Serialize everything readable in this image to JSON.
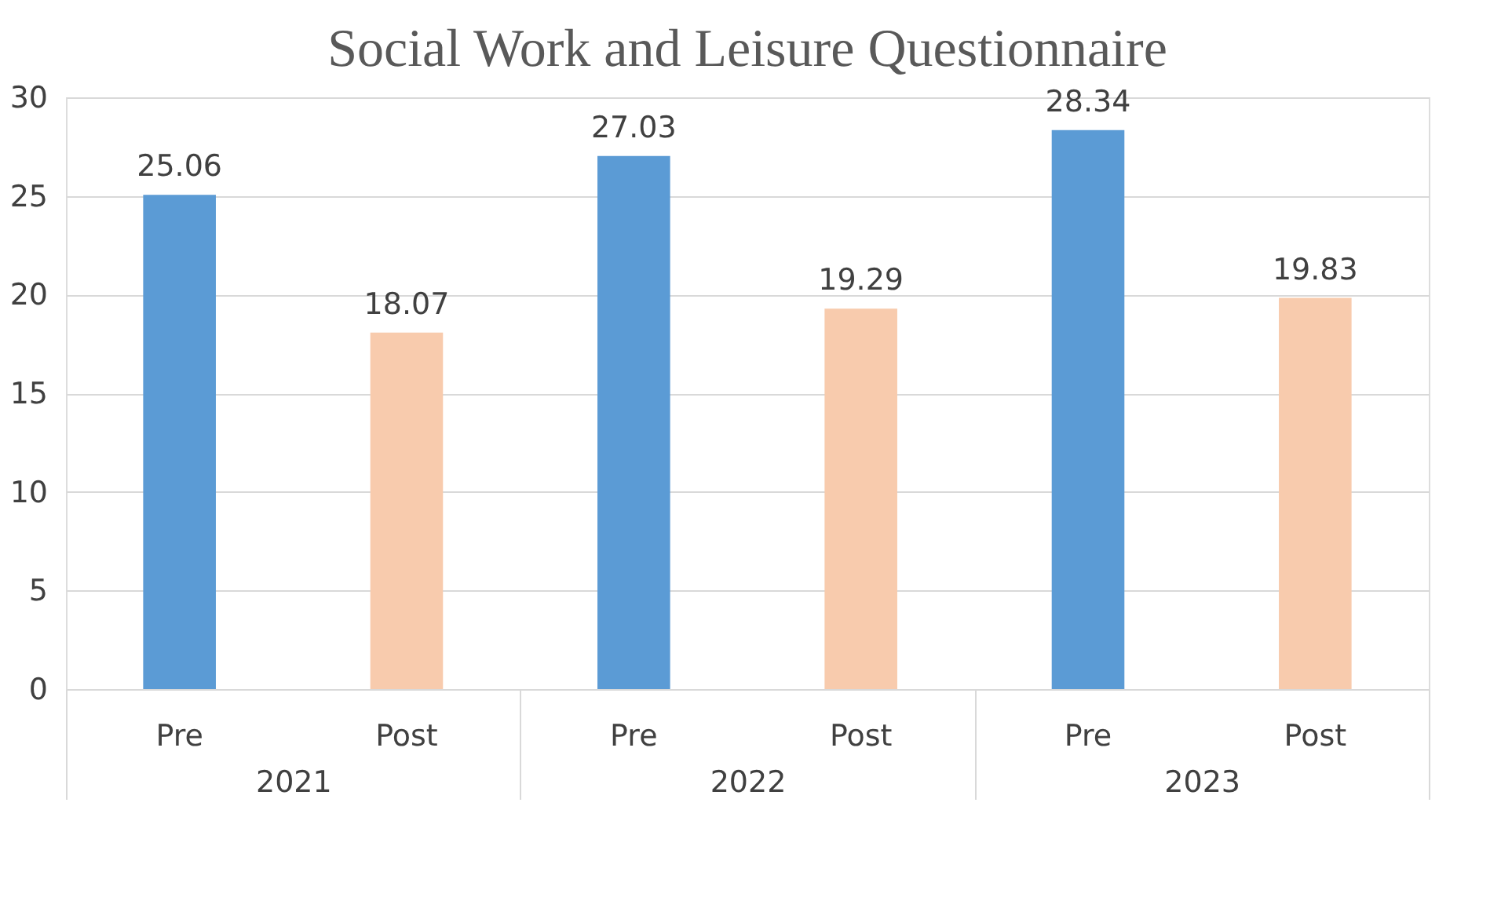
{
  "chart_data": {
    "type": "bar",
    "title": "Social Work and Leisure Questionnaire",
    "categories": [
      "2021",
      "2022",
      "2023"
    ],
    "series": [
      {
        "name": "Pre",
        "color": "#5b9bd5",
        "values": [
          25.06,
          27.03,
          28.34
        ]
      },
      {
        "name": "Post",
        "color": "#f8cbad",
        "values": [
          18.07,
          19.29,
          19.83
        ]
      }
    ],
    "ylim": [
      0,
      30
    ],
    "yticks": [
      0,
      5,
      10,
      15,
      20,
      25,
      30
    ],
    "grid": "y",
    "legend": false,
    "data_labels": true
  }
}
